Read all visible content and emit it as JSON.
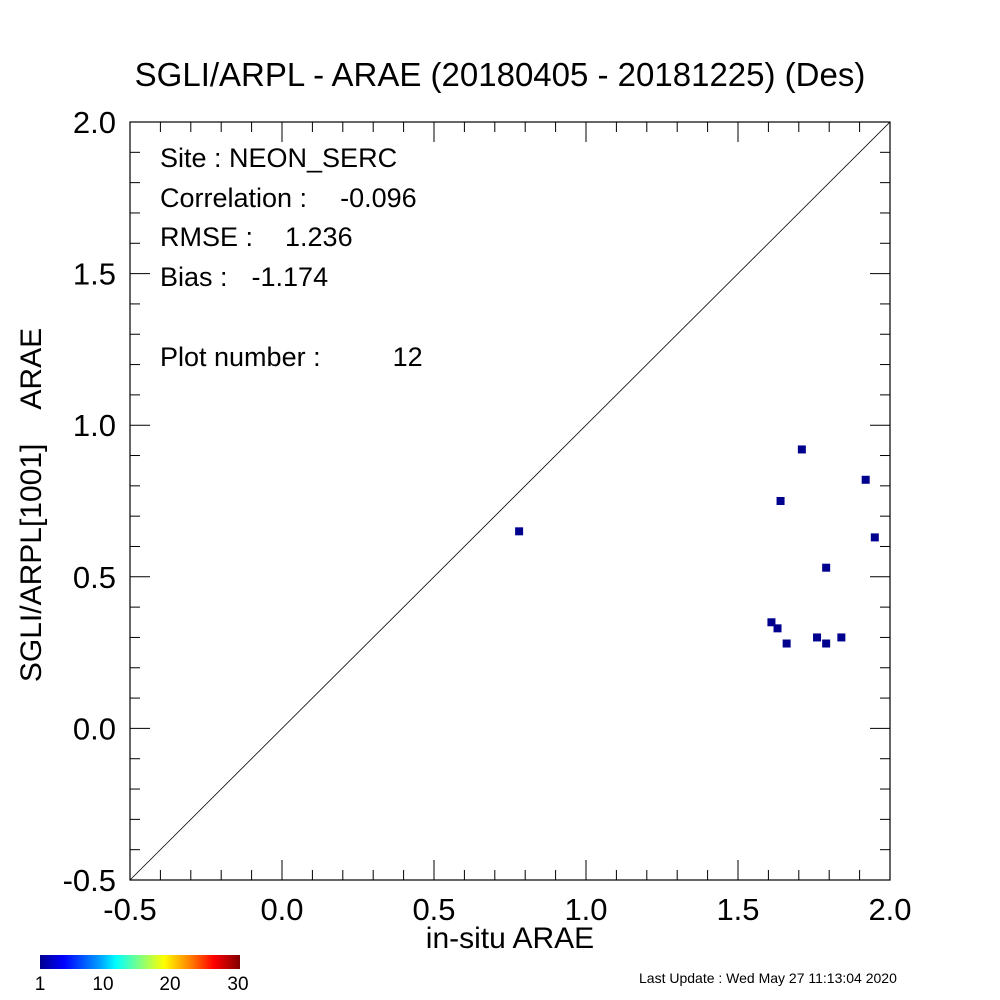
{
  "chart_data": {
    "type": "scatter",
    "title": "SGLI/ARPL - ARAE (20180405 - 20181225) (Des)",
    "xlabel": "in-situ ARAE",
    "ylabel_left": "SGLI/ARPL[1001]",
    "ylabel_right": "ARAE",
    "xlim": [
      -0.5,
      2.0
    ],
    "ylim": [
      -0.5,
      2.0
    ],
    "x_ticks": [
      "-0.5",
      "0.0",
      "0.5",
      "1.0",
      "1.5",
      "2.0"
    ],
    "y_ticks": [
      "-0.5",
      "0.0",
      "0.5",
      "1.0",
      "1.5",
      "2.0"
    ],
    "reference_line": "1:1",
    "marker_color": "#00008f",
    "points": [
      {
        "x": 0.78,
        "y": 0.65
      },
      {
        "x": 1.61,
        "y": 0.35
      },
      {
        "x": 1.63,
        "y": 0.33
      },
      {
        "x": 1.64,
        "y": 0.75
      },
      {
        "x": 1.66,
        "y": 0.28
      },
      {
        "x": 1.71,
        "y": 0.92
      },
      {
        "x": 1.76,
        "y": 0.3
      },
      {
        "x": 1.79,
        "y": 0.28
      },
      {
        "x": 1.79,
        "y": 0.53
      },
      {
        "x": 1.84,
        "y": 0.3
      },
      {
        "x": 1.92,
        "y": 0.82
      },
      {
        "x": 1.95,
        "y": 0.63
      }
    ],
    "stats": {
      "site": "Site : NEON_SERC",
      "correlation_label": "Correlation :",
      "correlation_value": "-0.096",
      "rmse_label": "RMSE :",
      "rmse_value": "1.236",
      "bias_label": "Bias :",
      "bias_value": "-1.174",
      "plot_number_label": "Plot number :",
      "plot_number_value": "12"
    },
    "colorbar": {
      "ticks": [
        "1",
        "10",
        "20",
        "30"
      ]
    }
  },
  "footer": {
    "last_update": "Last Update : Wed May 27 11:13:04 2020"
  }
}
